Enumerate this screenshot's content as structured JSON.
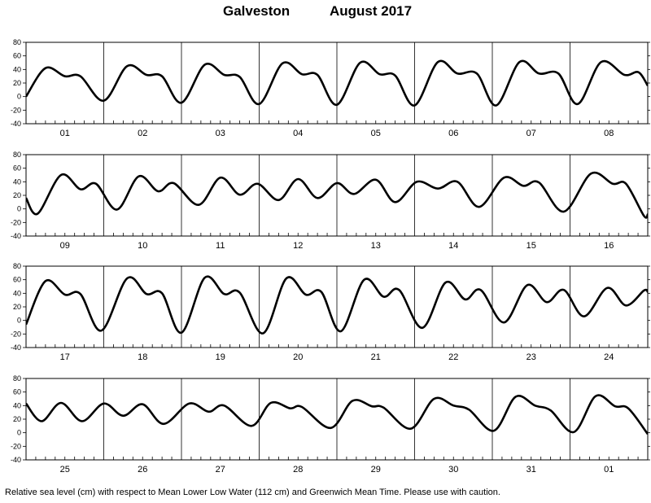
{
  "title": {
    "station": "Galveston",
    "period": "August 2017"
  },
  "footnote": "Relative sea level (cm) with respect to Mean Lower Low Water (112 cm) and Greenwich Mean Time. Please use with caution.",
  "chart_data": {
    "type": "line",
    "ylim": [
      -40,
      80
    ],
    "yticks": [
      -40,
      -20,
      0,
      20,
      40,
      60,
      80
    ],
    "grid": "vertical day separators",
    "line_color": "#000000",
    "panels": [
      {
        "days": [
          "01",
          "02",
          "03",
          "04",
          "05",
          "06",
          "07",
          "08"
        ],
        "series": [
          {
            "x": 0,
            "y": 0
          },
          {
            "x": 0.25,
            "y": 42
          },
          {
            "x": 0.5,
            "y": 30
          },
          {
            "x": 0.7,
            "y": 30
          },
          {
            "x": 1.0,
            "y": -6
          },
          {
            "x": 1.3,
            "y": 45
          },
          {
            "x": 1.55,
            "y": 32
          },
          {
            "x": 1.75,
            "y": 30
          },
          {
            "x": 2.0,
            "y": -9
          },
          {
            "x": 2.3,
            "y": 47
          },
          {
            "x": 2.55,
            "y": 32
          },
          {
            "x": 2.75,
            "y": 29
          },
          {
            "x": 3.0,
            "y": -11
          },
          {
            "x": 3.3,
            "y": 49
          },
          {
            "x": 3.55,
            "y": 33
          },
          {
            "x": 3.75,
            "y": 32
          },
          {
            "x": 4.0,
            "y": -12
          },
          {
            "x": 4.3,
            "y": 50
          },
          {
            "x": 4.55,
            "y": 33
          },
          {
            "x": 4.75,
            "y": 31
          },
          {
            "x": 5.0,
            "y": -13
          },
          {
            "x": 5.3,
            "y": 51
          },
          {
            "x": 5.55,
            "y": 34
          },
          {
            "x": 5.8,
            "y": 34
          },
          {
            "x": 6.05,
            "y": -13
          },
          {
            "x": 6.35,
            "y": 51
          },
          {
            "x": 6.6,
            "y": 34
          },
          {
            "x": 6.85,
            "y": 34
          },
          {
            "x": 7.1,
            "y": -11
          },
          {
            "x": 7.4,
            "y": 51
          },
          {
            "x": 7.7,
            "y": 32
          },
          {
            "x": 7.88,
            "y": 36
          },
          {
            "x": 8.0,
            "y": 16
          }
        ]
      },
      {
        "days": [
          "09",
          "10",
          "11",
          "12",
          "13",
          "14",
          "15",
          "16"
        ],
        "series": [
          {
            "x": 0,
            "y": 16
          },
          {
            "x": 0.15,
            "y": -7
          },
          {
            "x": 0.45,
            "y": 50
          },
          {
            "x": 0.7,
            "y": 29
          },
          {
            "x": 0.9,
            "y": 37
          },
          {
            "x": 1.17,
            "y": -1
          },
          {
            "x": 1.45,
            "y": 48
          },
          {
            "x": 1.7,
            "y": 26
          },
          {
            "x": 1.9,
            "y": 38
          },
          {
            "x": 2.22,
            "y": 6
          },
          {
            "x": 2.5,
            "y": 46
          },
          {
            "x": 2.75,
            "y": 21
          },
          {
            "x": 2.98,
            "y": 37
          },
          {
            "x": 3.25,
            "y": 13
          },
          {
            "x": 3.5,
            "y": 44
          },
          {
            "x": 3.75,
            "y": 16
          },
          {
            "x": 4.0,
            "y": 38
          },
          {
            "x": 4.22,
            "y": 22
          },
          {
            "x": 4.5,
            "y": 43
          },
          {
            "x": 4.75,
            "y": 10
          },
          {
            "x": 5.03,
            "y": 40
          },
          {
            "x": 5.3,
            "y": 30
          },
          {
            "x": 5.55,
            "y": 40
          },
          {
            "x": 5.83,
            "y": 3
          },
          {
            "x": 6.15,
            "y": 46
          },
          {
            "x": 6.4,
            "y": 34
          },
          {
            "x": 6.6,
            "y": 39
          },
          {
            "x": 6.92,
            "y": -4
          },
          {
            "x": 7.27,
            "y": 52
          },
          {
            "x": 7.55,
            "y": 37
          },
          {
            "x": 7.72,
            "y": 37
          },
          {
            "x": 7.95,
            "y": -10
          },
          {
            "x": 8.0,
            "y": -8
          }
        ]
      },
      {
        "days": [
          "17",
          "18",
          "19",
          "20",
          "21",
          "22",
          "23",
          "24"
        ],
        "series": [
          {
            "x": 0,
            "y": -6
          },
          {
            "x": 0.25,
            "y": 58
          },
          {
            "x": 0.5,
            "y": 38
          },
          {
            "x": 0.7,
            "y": 39
          },
          {
            "x": 0.97,
            "y": -15
          },
          {
            "x": 1.3,
            "y": 62
          },
          {
            "x": 1.55,
            "y": 39
          },
          {
            "x": 1.75,
            "y": 40
          },
          {
            "x": 2.0,
            "y": -18
          },
          {
            "x": 2.3,
            "y": 63
          },
          {
            "x": 2.55,
            "y": 39
          },
          {
            "x": 2.75,
            "y": 41
          },
          {
            "x": 3.05,
            "y": -19
          },
          {
            "x": 3.35,
            "y": 62
          },
          {
            "x": 3.6,
            "y": 38
          },
          {
            "x": 3.8,
            "y": 42
          },
          {
            "x": 4.05,
            "y": -16
          },
          {
            "x": 4.35,
            "y": 60
          },
          {
            "x": 4.6,
            "y": 35
          },
          {
            "x": 4.8,
            "y": 45
          },
          {
            "x": 5.1,
            "y": -11
          },
          {
            "x": 5.4,
            "y": 56
          },
          {
            "x": 5.65,
            "y": 31
          },
          {
            "x": 5.85,
            "y": 45
          },
          {
            "x": 6.15,
            "y": -3
          },
          {
            "x": 6.45,
            "y": 52
          },
          {
            "x": 6.7,
            "y": 27
          },
          {
            "x": 6.92,
            "y": 45
          },
          {
            "x": 7.18,
            "y": 6
          },
          {
            "x": 7.48,
            "y": 48
          },
          {
            "x": 7.72,
            "y": 22
          },
          {
            "x": 7.95,
            "y": 44
          },
          {
            "x": 8.0,
            "y": 42
          }
        ]
      },
      {
        "days": [
          "25",
          "26",
          "27",
          "28",
          "29",
          "30",
          "31",
          "01"
        ],
        "series": [
          {
            "x": 0,
            "y": 43
          },
          {
            "x": 0.2,
            "y": 17
          },
          {
            "x": 0.45,
            "y": 44
          },
          {
            "x": 0.72,
            "y": 17
          },
          {
            "x": 1.0,
            "y": 43
          },
          {
            "x": 1.25,
            "y": 25
          },
          {
            "x": 1.5,
            "y": 42
          },
          {
            "x": 1.77,
            "y": 13
          },
          {
            "x": 2.1,
            "y": 43
          },
          {
            "x": 2.35,
            "y": 31
          },
          {
            "x": 2.55,
            "y": 40
          },
          {
            "x": 2.9,
            "y": 10
          },
          {
            "x": 3.15,
            "y": 44
          },
          {
            "x": 3.4,
            "y": 36
          },
          {
            "x": 3.55,
            "y": 38
          },
          {
            "x": 3.92,
            "y": 7
          },
          {
            "x": 4.2,
            "y": 47
          },
          {
            "x": 4.45,
            "y": 39
          },
          {
            "x": 4.6,
            "y": 37
          },
          {
            "x": 4.95,
            "y": 6
          },
          {
            "x": 5.25,
            "y": 50
          },
          {
            "x": 5.5,
            "y": 40
          },
          {
            "x": 5.7,
            "y": 34
          },
          {
            "x": 6.02,
            "y": 3
          },
          {
            "x": 6.3,
            "y": 53
          },
          {
            "x": 6.55,
            "y": 40
          },
          {
            "x": 6.75,
            "y": 33
          },
          {
            "x": 7.05,
            "y": 1
          },
          {
            "x": 7.33,
            "y": 54
          },
          {
            "x": 7.58,
            "y": 39
          },
          {
            "x": 7.75,
            "y": 36
          },
          {
            "x": 8.0,
            "y": -2
          }
        ]
      }
    ]
  }
}
